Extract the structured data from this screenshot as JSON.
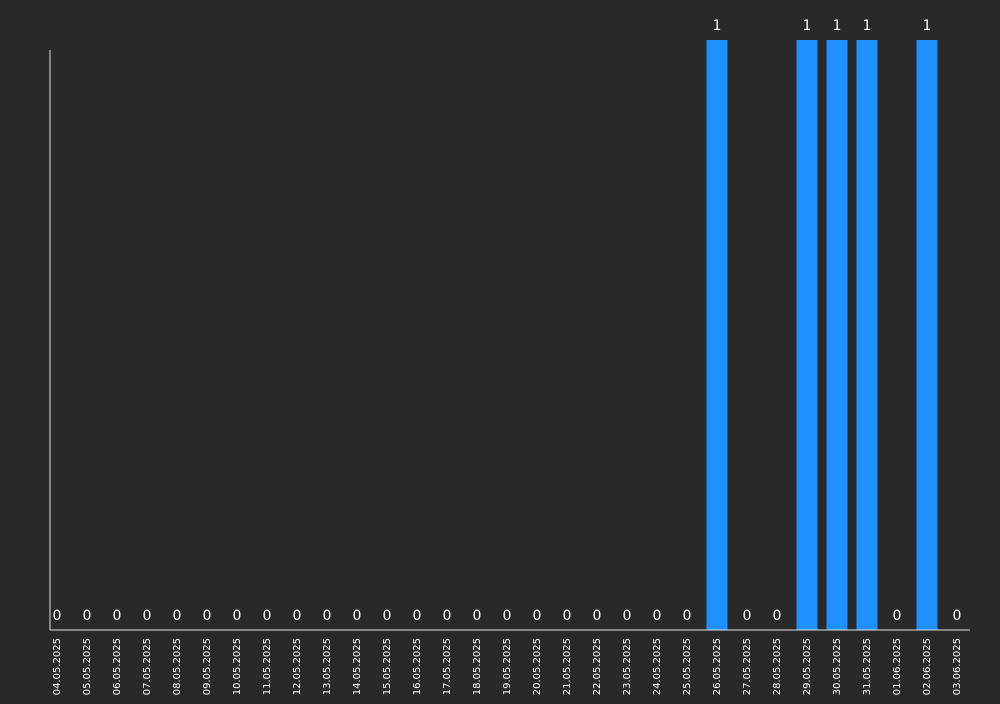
{
  "chart_data": {
    "type": "bar",
    "categories": [
      "04.05.2025",
      "05.05.2025",
      "06.05.2025",
      "07.05.2025",
      "08.05.2025",
      "09.05.2025",
      "10.05.2025",
      "11.05.2025",
      "12.05.2025",
      "13.05.2025",
      "14.05.2025",
      "15.05.2025",
      "16.05.2025",
      "17.05.2025",
      "18.05.2025",
      "19.05.2025",
      "20.05.2025",
      "21.05.2025",
      "22.05.2025",
      "23.05.2025",
      "24.05.2025",
      "25.05.2025",
      "26.05.2025",
      "27.05.2025",
      "28.05.2025",
      "29.05.2025",
      "30.05.2025",
      "31.05.2025",
      "01.06.2025",
      "02.06.2025",
      "03.06.2025"
    ],
    "values": [
      0,
      0,
      0,
      0,
      0,
      0,
      0,
      0,
      0,
      0,
      0,
      0,
      0,
      0,
      0,
      0,
      0,
      0,
      0,
      0,
      0,
      0,
      1,
      0,
      0,
      1,
      1,
      1,
      0,
      1,
      0
    ],
    "title": "",
    "xlabel": "",
    "ylabel": "",
    "ylim": [
      0,
      1
    ],
    "grid": false,
    "legend": "none",
    "data_labels": true,
    "colors": {
      "background": "#292929",
      "bar": "#1e90ff",
      "axis": "#e0e0e0",
      "text": "#ffffff"
    }
  }
}
